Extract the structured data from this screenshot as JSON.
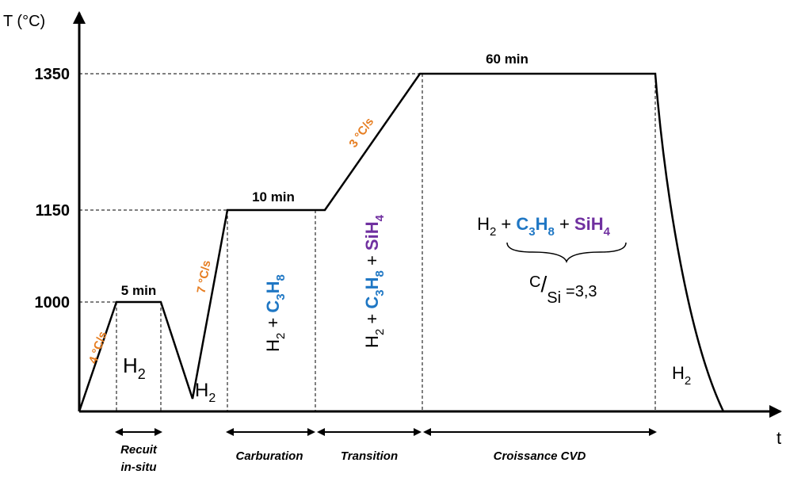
{
  "axes": {
    "y_label": "T (°C)",
    "x_label": "t",
    "y_ticks": [
      "1350",
      "1150",
      "1000"
    ]
  },
  "durations": [
    "5 min",
    "10 min",
    "60 min"
  ],
  "rates": [
    "4 °C/s",
    "7 °C/s",
    "3 °C/s"
  ],
  "gases": {
    "recuit": [
      {
        "text": "H",
        "sub": "2"
      }
    ],
    "cooling": [
      {
        "text": "H",
        "sub": "2"
      }
    ],
    "carburation": [
      {
        "text": "H",
        "sub": "2"
      },
      {
        "text": " + "
      },
      {
        "text": "C",
        "sub": "3",
        "color": "#1f77c4",
        "bold": true
      },
      {
        "text": "H",
        "sub": "8",
        "color": "#1f77c4",
        "bold": true
      }
    ],
    "transition": [
      {
        "text": "H",
        "sub": "2"
      },
      {
        "text": " + "
      },
      {
        "text": "C",
        "sub": "3",
        "color": "#1f77c4",
        "bold": true
      },
      {
        "text": "H",
        "sub": "8",
        "color": "#1f77c4",
        "bold": true
      },
      {
        "text": " + "
      },
      {
        "text": "SiH",
        "sub": "4",
        "color": "#7030a0",
        "bold": true
      }
    ],
    "growth": [
      {
        "text": "H",
        "sub": "2"
      },
      {
        "text": " + "
      },
      {
        "text": "C",
        "sub": "3",
        "color": "#1f77c4",
        "bold": true
      },
      {
        "text": "H",
        "sub": "8",
        "color": "#1f77c4",
        "bold": true
      },
      {
        "text": " + "
      },
      {
        "text": "SiH",
        "sub": "4",
        "color": "#7030a0",
        "bold": true
      }
    ],
    "final": [
      {
        "text": "H",
        "sub": "2"
      }
    ]
  },
  "ratio": {
    "num": "C",
    "den": "Si",
    "value": "=3,3"
  },
  "phases": {
    "recuit": [
      "Recuit",
      "in-situ"
    ],
    "carburation": "Carburation",
    "transition": "Transition",
    "growth": "Croissance CVD"
  }
}
